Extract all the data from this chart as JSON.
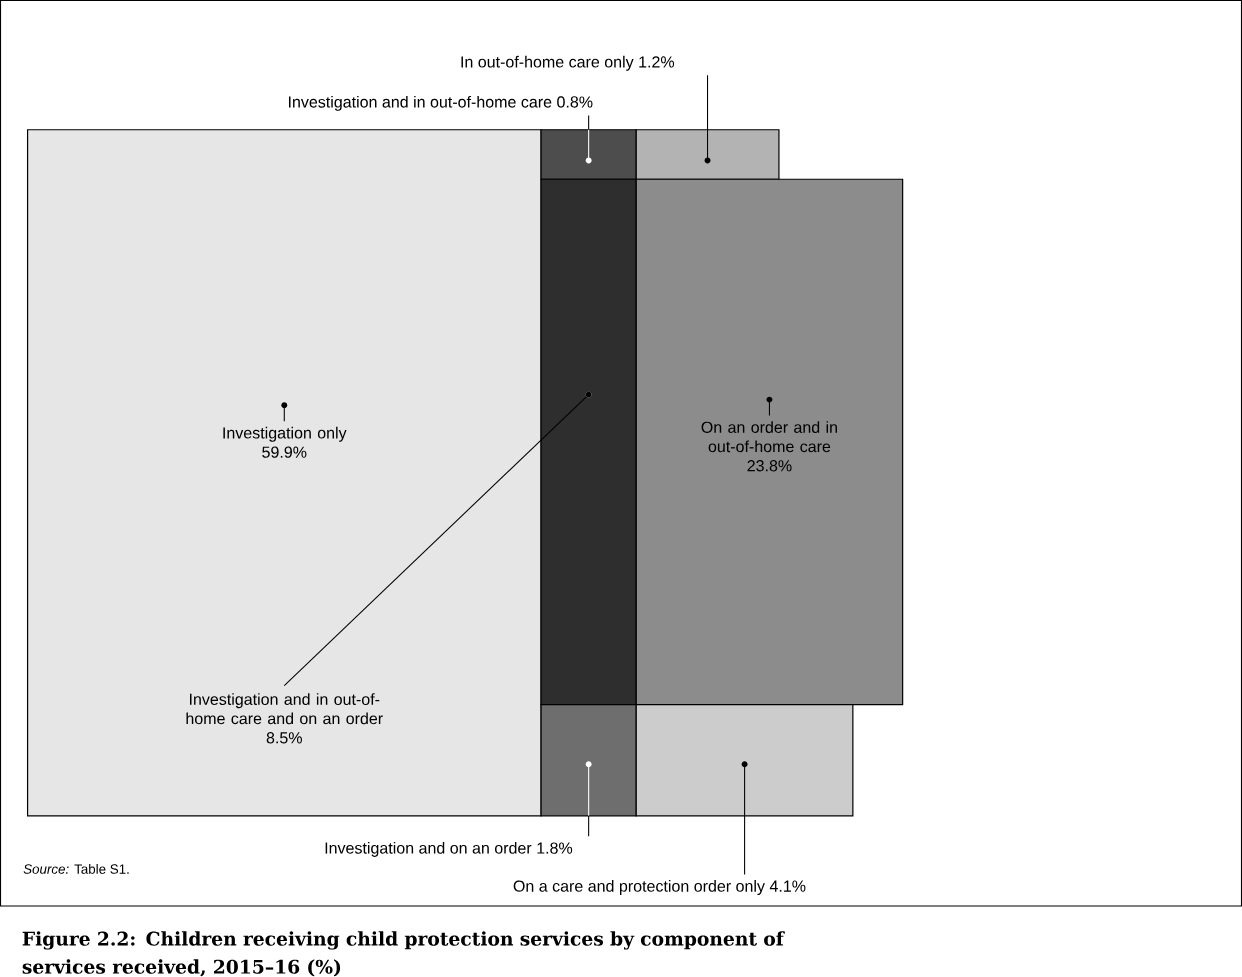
{
  "chart_data": {
    "type": "other",
    "title": "Figure 2.2: Children receiving child protection services by component of services received, 2015–16 (%)",
    "categories": [
      "Investigation only",
      "Investigation and in out-of-home care",
      "In out-of-home care only",
      "Investigation and in out-of-home care and on an order",
      "On an order and in out-of-home care",
      "Investigation and on an order",
      "On a care and protection order only"
    ],
    "values": [
      59.9,
      0.8,
      1.2,
      8.5,
      23.8,
      1.8,
      4.1
    ],
    "value_labels": [
      "59.9%",
      "0.8%",
      "1.2%",
      "8.5%",
      "23.8%",
      "1.8%",
      "4.1%"
    ],
    "colors": [
      "#e6e6e6",
      "#4d4d4d",
      "#b3b3b3",
      "#2e2e2e",
      "#8c8c8c",
      "#6e6e6e",
      "#cccccc"
    ],
    "annotations": [
      "*Source:* Table S1."
    ]
  }
}
